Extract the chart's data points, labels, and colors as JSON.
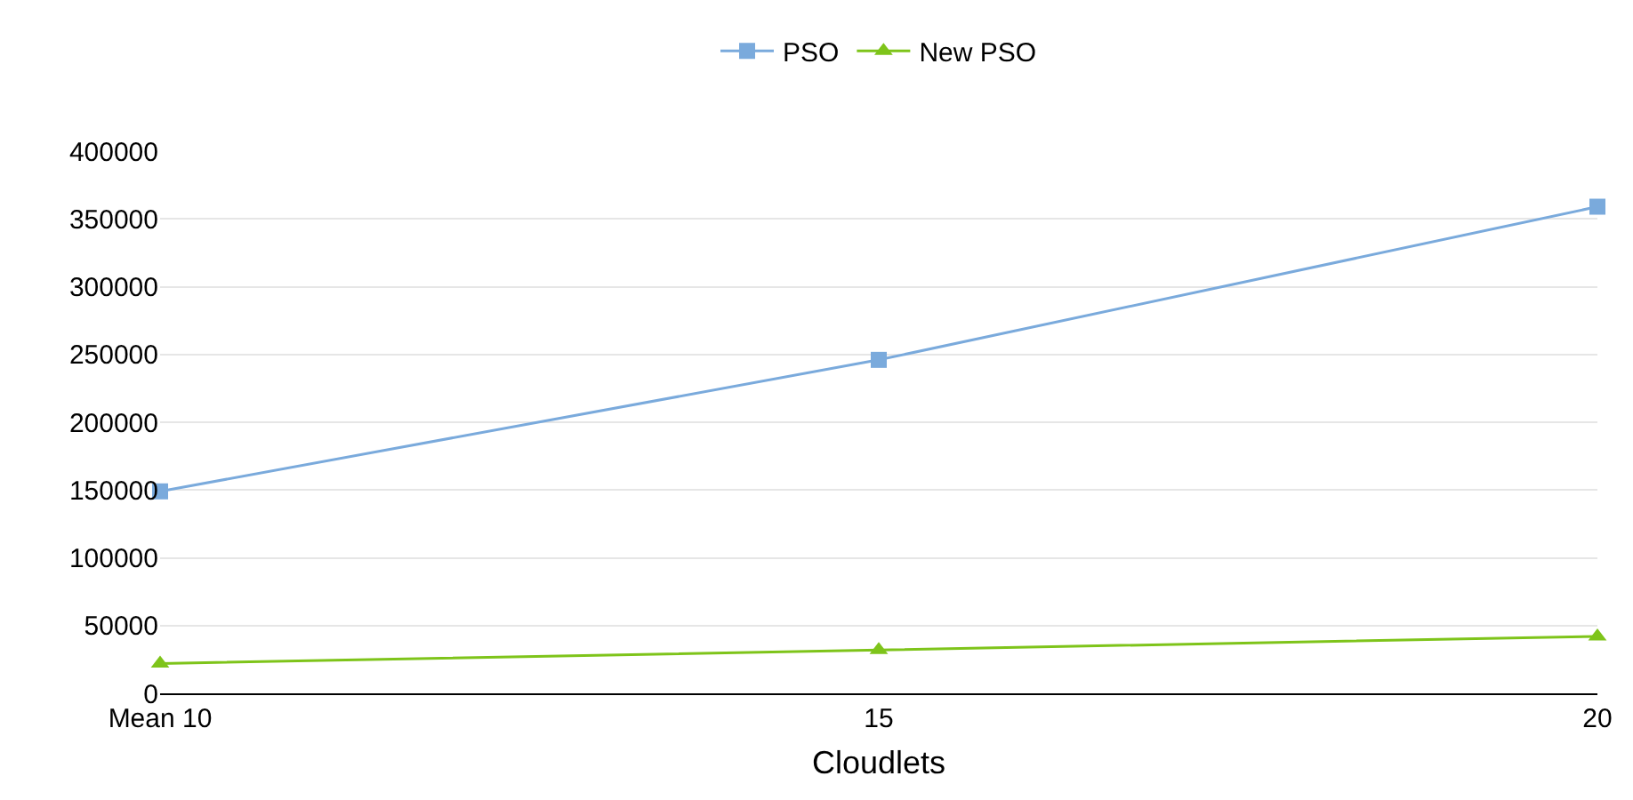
{
  "chart_data": {
    "type": "line",
    "xlabel": "Cloudlets",
    "categories": [
      "Mean 10",
      "15",
      "20"
    ],
    "series": [
      {
        "name": "PSO",
        "color": "#7aaadc",
        "marker": "square",
        "values": [
          149000,
          246000,
          359000
        ]
      },
      {
        "name": "New PSO",
        "color": "#7ec41a",
        "marker": "triangle",
        "values": [
          22000,
          32000,
          42000
        ]
      }
    ],
    "ylim": [
      0,
      400000
    ],
    "yticks": [
      0,
      50000,
      100000,
      150000,
      200000,
      250000,
      300000,
      350000,
      400000
    ],
    "grid": "y",
    "legend": "top",
    "line_style": "solid"
  }
}
